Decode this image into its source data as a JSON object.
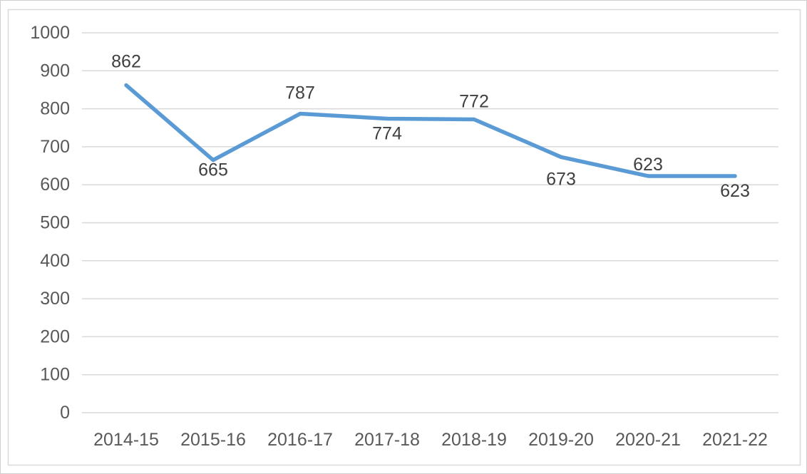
{
  "chart_data": {
    "type": "line",
    "title": "",
    "xlabel": "",
    "ylabel": "",
    "categories": [
      "2014-15",
      "2015-16",
      "2016-17",
      "2017-18",
      "2018-19",
      "2019-20",
      "2020-21",
      "2021-22"
    ],
    "values": [
      862,
      665,
      787,
      774,
      772,
      673,
      623,
      623
    ],
    "data_labels": {
      "texts": [
        "862",
        "665",
        "787",
        "774",
        "772",
        "673",
        "623",
        "623"
      ],
      "positions": [
        "above",
        "below",
        "above",
        "below",
        "above",
        "below",
        "above",
        "below"
      ],
      "dy": [
        -33,
        14,
        -29,
        21,
        -25,
        31,
        -16,
        21
      ]
    },
    "y_ticks": [
      0,
      100,
      200,
      300,
      400,
      500,
      600,
      700,
      800,
      900,
      1000
    ],
    "ylim": [
      0,
      1000
    ],
    "grid": true,
    "legend": "none",
    "colors": {
      "line": "#5B9BD5",
      "gridline": "#D9D9D9",
      "axis_label": "#595959",
      "data_label": "#3F3F3F",
      "chart_border": "#D9D9D9",
      "background": "#FFFFFF"
    }
  }
}
